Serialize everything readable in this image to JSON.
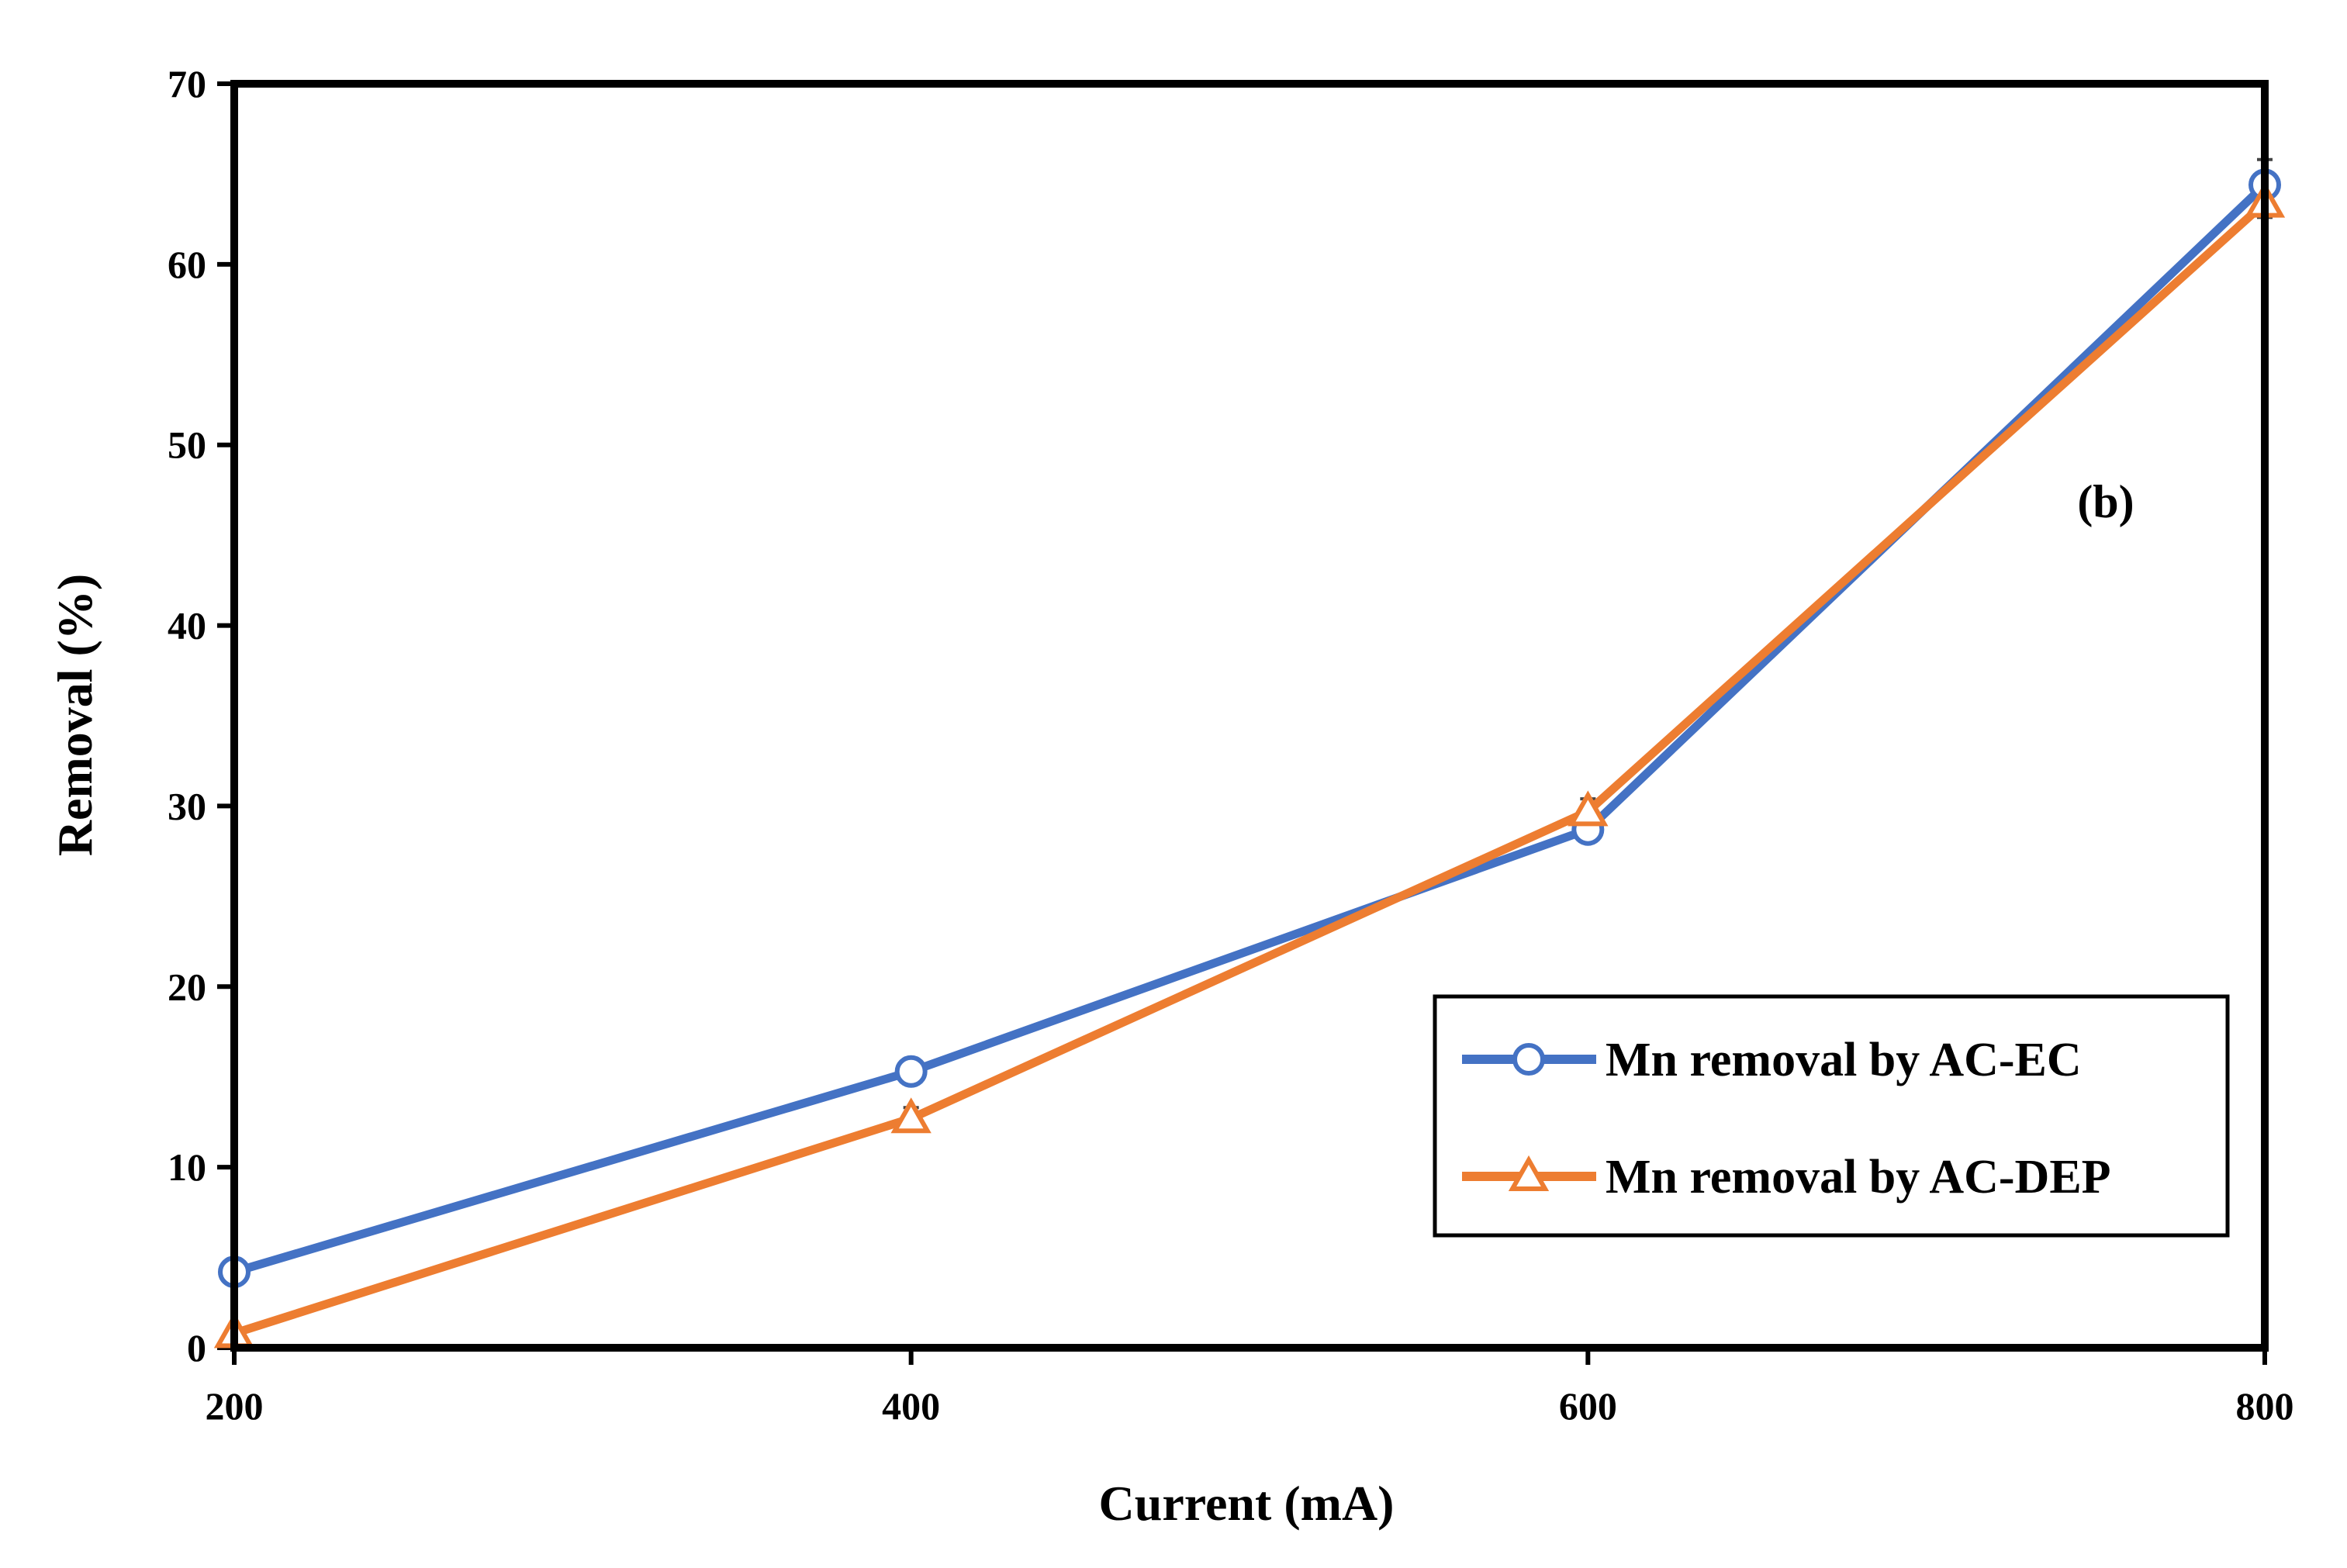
{
  "chart_data": {
    "type": "line",
    "x": [
      200,
      400,
      600,
      800
    ],
    "xticks": [
      200,
      400,
      600,
      800
    ],
    "yticks": [
      0,
      10,
      20,
      30,
      40,
      50,
      60,
      70
    ],
    "xlim": [
      200,
      800
    ],
    "ylim": [
      0,
      70
    ],
    "xlabel": "Current (mA)",
    "ylabel": "Removal (%)",
    "title": "",
    "grid": false,
    "legend_position": "bottom-right",
    "annotation": "(b)",
    "series": [
      {
        "name": "Mn removal by AC-EC",
        "marker": "circle",
        "color": "#4472C4",
        "values": [
          4.2,
          15.3,
          28.7,
          64.4
        ],
        "error": [
          0.3,
          0.5,
          0.7,
          1.4
        ]
      },
      {
        "name": "Mn removal by AC-DEP",
        "marker": "triangle",
        "color": "#ED7D31",
        "values": [
          0.8,
          12.7,
          29.7,
          63.4
        ],
        "error": [
          0.3,
          0.6,
          0.7,
          0.8
        ]
      }
    ]
  }
}
